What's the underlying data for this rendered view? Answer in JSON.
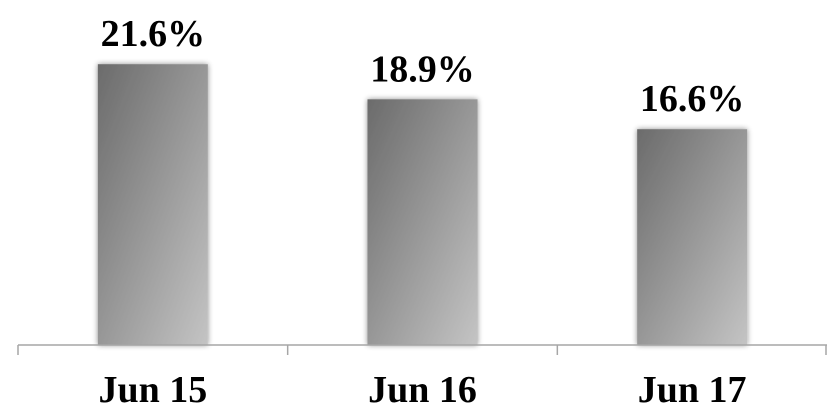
{
  "chart_data": {
    "type": "bar",
    "categories": [
      "Jun 15",
      "Jun 16",
      "Jun 17"
    ],
    "values": [
      21.6,
      18.9,
      16.6
    ],
    "data_labels": [
      "21.6%",
      "18.9%",
      "16.6%"
    ],
    "title": "",
    "xlabel": "",
    "ylabel": "",
    "ylim": [
      0,
      25
    ],
    "grid": false,
    "legend": "none",
    "colors": {
      "bar_dark": "#6b6b6b",
      "bar_light": "#c4c4c4",
      "axis": "#a6a6a6",
      "text": "#000000"
    }
  }
}
